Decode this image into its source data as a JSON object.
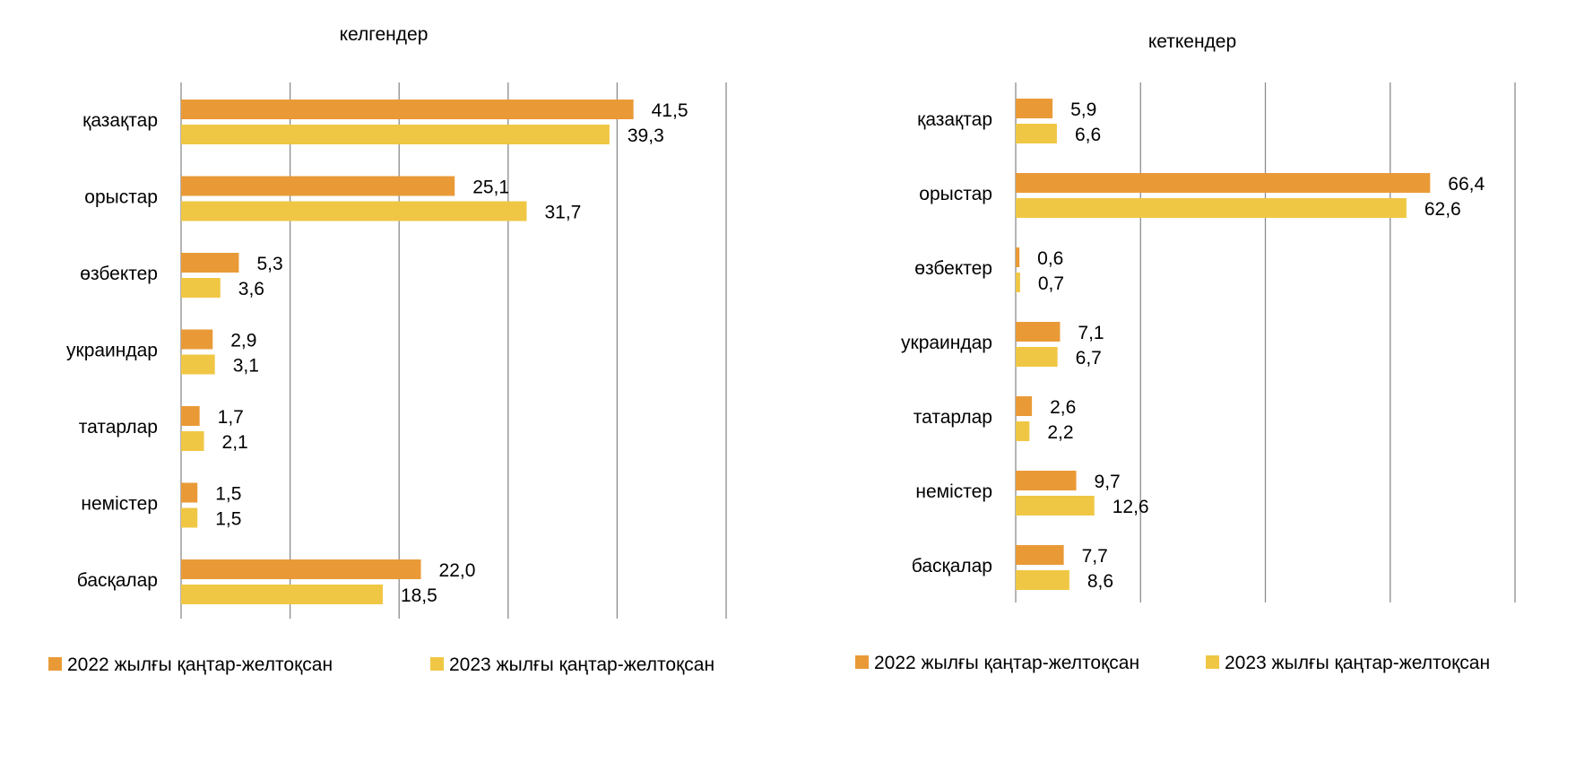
{
  "chart_data": [
    {
      "type": "bar",
      "orientation": "horizontal",
      "title": "келгендер",
      "categories": [
        "қазақтар",
        "орыстар",
        "өзбектер",
        "украиндар",
        "татарлар",
        "немістер",
        "басқалар"
      ],
      "series": [
        {
          "name": "2022 жылғы қаңтар-желтоқсан",
          "color": "#E99A37",
          "values": [
            41.5,
            25.1,
            5.3,
            2.9,
            1.7,
            1.5,
            22.0
          ],
          "labels": [
            "41,5",
            "25,1",
            "5,3",
            "2,9",
            "1,7",
            "1,5",
            "22,0"
          ]
        },
        {
          "name": "2023 жылғы қаңтар-желтоқсан",
          "color": "#F0C744",
          "values": [
            39.3,
            31.7,
            3.6,
            3.1,
            2.1,
            1.5,
            18.5
          ],
          "labels": [
            "39,3",
            "31,7",
            "3,6",
            "3,1",
            "2,1",
            "1,5",
            "18,5"
          ]
        }
      ],
      "xlim": [
        0,
        50
      ],
      "gridlines": [
        0,
        10,
        20,
        30,
        40,
        50
      ],
      "grid": true,
      "legend_position": "bottom"
    },
    {
      "type": "bar",
      "orientation": "horizontal",
      "title": "кеткендер",
      "categories": [
        "қазақтар",
        "орыстар",
        "өзбектер",
        "украиндар",
        "татарлар",
        "немістер",
        "басқалар"
      ],
      "series": [
        {
          "name": "2022 жылғы қаңтар-желтоқсан",
          "color": "#E99A37",
          "values": [
            5.9,
            66.4,
            0.6,
            7.1,
            2.6,
            9.7,
            7.7
          ],
          "labels": [
            "5,9",
            "66,4",
            "0,6",
            "7,1",
            "2,6",
            "9,7",
            "7,7"
          ]
        },
        {
          "name": "2023 жылғы қаңтар-желтоқсан",
          "color": "#F0C744",
          "values": [
            6.6,
            62.6,
            0.7,
            6.7,
            2.2,
            12.6,
            8.6
          ],
          "labels": [
            "6,6",
            "62,6",
            "0,7",
            "6,7",
            "2,2",
            "12,6",
            "8,6"
          ]
        }
      ],
      "xlim": [
        0,
        80
      ],
      "gridlines": [
        0,
        20,
        40,
        60,
        80
      ],
      "grid": true,
      "legend_position": "bottom"
    }
  ]
}
